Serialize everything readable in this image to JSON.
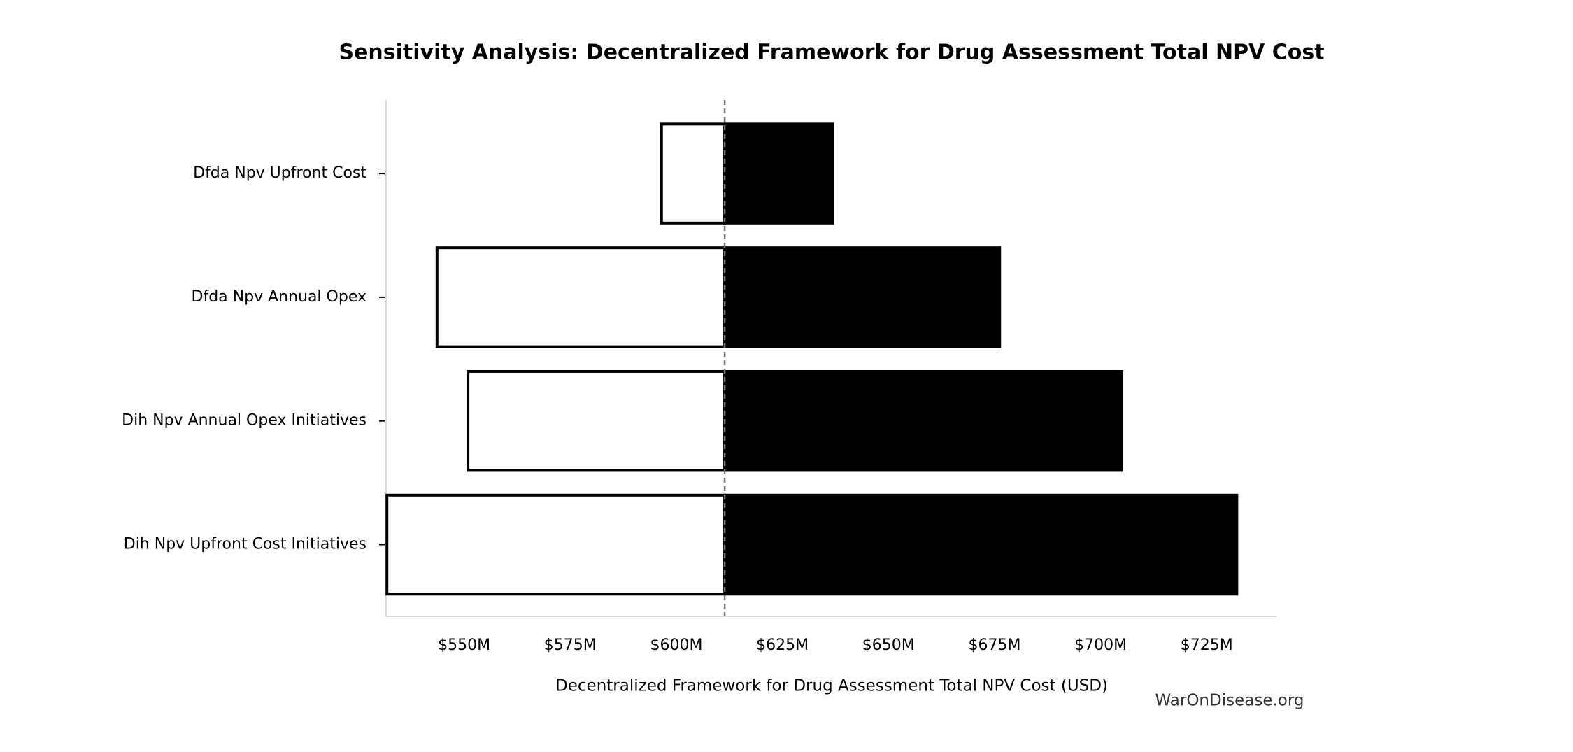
{
  "chart_data": {
    "type": "tornado",
    "title": "Sensitivity Analysis: Decentralized Framework for Drug Assessment Total NPV Cost",
    "xlabel": "Decentralized Framework for Drug Assessment Total NPV Cost (USD)",
    "annotation": "WarOnDisease.org",
    "categories": [
      "Dfda Npv Upfront Cost",
      "Dfda Npv Annual Opex",
      "Dih Npv Annual Opex Initiatives",
      "Dih Npv Upfront Cost Initiatives"
    ],
    "baseline": 611.4,
    "series": [
      {
        "color": "#ffffff",
        "values": [
          596.5,
          543.6,
          550.9,
          531.8
        ]
      },
      {
        "color": "#000000",
        "values": [
          636.8,
          676.2,
          705.0,
          732.1
        ]
      }
    ],
    "xlim": [
      531.6,
      741.6
    ],
    "xticks": [
      {
        "value": 550,
        "label": "$550M"
      },
      {
        "value": 575,
        "label": "$575M"
      },
      {
        "value": 600,
        "label": "$600M"
      },
      {
        "value": 625,
        "label": "$625M"
      },
      {
        "value": 650,
        "label": "$650M"
      },
      {
        "value": 675,
        "label": "$675M"
      },
      {
        "value": 700,
        "label": "$700M"
      },
      {
        "value": 725,
        "label": "$725M"
      }
    ]
  }
}
